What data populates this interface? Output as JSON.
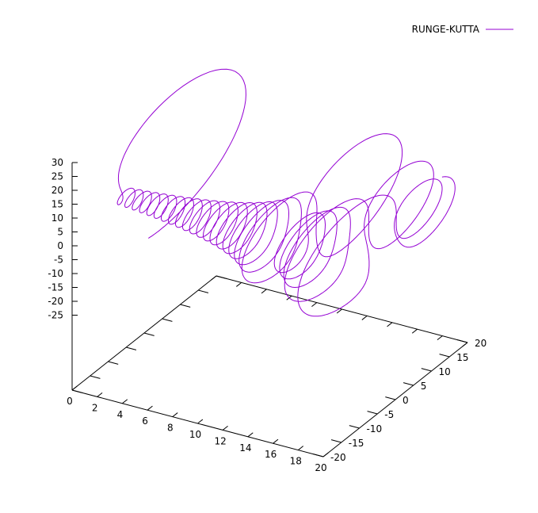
{
  "chart_data": {
    "type": "line",
    "subtype": "3d-parametric-curve",
    "title": "",
    "xlabel": "",
    "ylabel": "",
    "zlabel": "",
    "xlim": [
      0,
      20
    ],
    "ylim": [
      -20,
      20
    ],
    "zlim": [
      -25,
      30
    ],
    "x_ticks": [
      "0",
      "2",
      "4",
      "6",
      "8",
      "10",
      "12",
      "14",
      "16",
      "18",
      "20"
    ],
    "y_ticks": [
      "-20",
      "-15",
      "-10",
      "-5",
      "0",
      "5",
      "10",
      "15",
      "20"
    ],
    "z_ticks": [
      "30",
      "25",
      "20",
      "15",
      "10",
      "5",
      "0",
      "-5",
      "-10",
      "-15",
      "-20",
      "-25"
    ],
    "grid": false,
    "legend": {
      "position": "top-right"
    },
    "series": [
      {
        "name": "RUNGE-KUTTA",
        "color": "#9400d3"
      }
    ]
  }
}
